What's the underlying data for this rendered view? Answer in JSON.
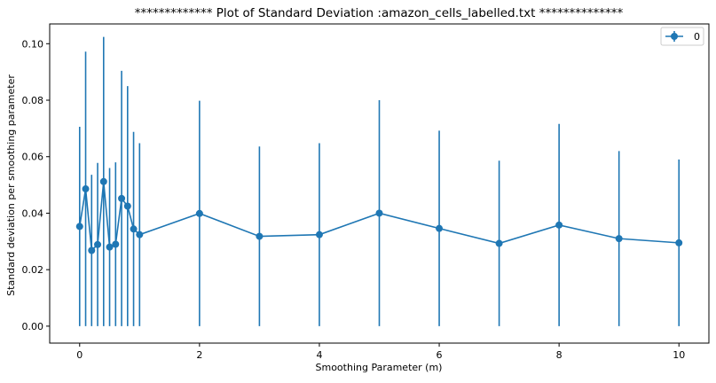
{
  "chart_data": {
    "type": "line",
    "title": "************* Plot of Standard Deviation :amazon_cells_labelled.txt **************",
    "xlabel": "Smoothing Parameter (m)",
    "ylabel": "Standard deviation per smoothing parameter",
    "xlim": [
      -0.5,
      10.5
    ],
    "ylim": [
      -0.006,
      0.107
    ],
    "xticks": [
      0,
      2,
      4,
      6,
      8,
      10
    ],
    "xtick_labels": [
      "0",
      "2",
      "4",
      "6",
      "8",
      "10"
    ],
    "yticks": [
      0.0,
      0.02,
      0.04,
      0.06,
      0.08,
      0.1
    ],
    "ytick_labels": [
      "0.00",
      "0.02",
      "0.04",
      "0.06",
      "0.08",
      "0.10"
    ],
    "grid": false,
    "legend": "top-right",
    "series": [
      {
        "name": "0",
        "color": "#1f77b4",
        "marker": "circle",
        "errorbars": "symmetric",
        "x": [
          0.0,
          0.1,
          0.2,
          0.3,
          0.4,
          0.5,
          0.6,
          0.7,
          0.8,
          0.9,
          1.0,
          2.0,
          3.0,
          4.0,
          5.0,
          6.0,
          7.0,
          8.0,
          9.0,
          10.0
        ],
        "y": [
          0.0353,
          0.0486,
          0.0268,
          0.0289,
          0.0512,
          0.028,
          0.029,
          0.0452,
          0.0425,
          0.0344,
          0.0324,
          0.0399,
          0.0318,
          0.0324,
          0.04,
          0.0346,
          0.0293,
          0.0358,
          0.031,
          0.0295
        ],
        "error": [
          0.0353,
          0.0486,
          0.0268,
          0.0289,
          0.0512,
          0.028,
          0.029,
          0.0452,
          0.0425,
          0.0344,
          0.0324,
          0.0399,
          0.0318,
          0.0324,
          0.04,
          0.0346,
          0.0293,
          0.0358,
          0.031,
          0.0295
        ]
      }
    ]
  }
}
